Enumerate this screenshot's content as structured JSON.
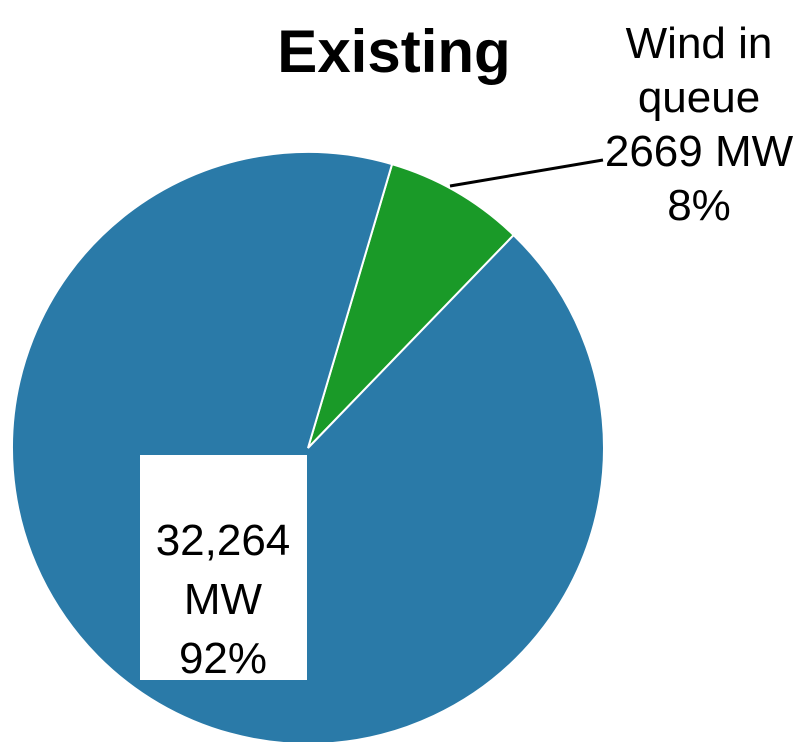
{
  "chart_data": {
    "type": "pie",
    "title": "Existing",
    "slices": [
      {
        "label": "Wind in queue",
        "value": 2669,
        "unit": "MW",
        "percent": "8%",
        "color": "#1a9a28"
      },
      {
        "label": "",
        "value": 32264,
        "unit": "MW",
        "percent": "92%",
        "color": "#2a7aa8"
      }
    ],
    "labels": {
      "wind": {
        "line1": "Wind in",
        "line2": "queue",
        "line3": "2669 MW",
        "line4": "8%"
      },
      "existing": {
        "line1": "32,264",
        "line2": "MW",
        "line3": "92%"
      }
    },
    "legend": "none"
  }
}
